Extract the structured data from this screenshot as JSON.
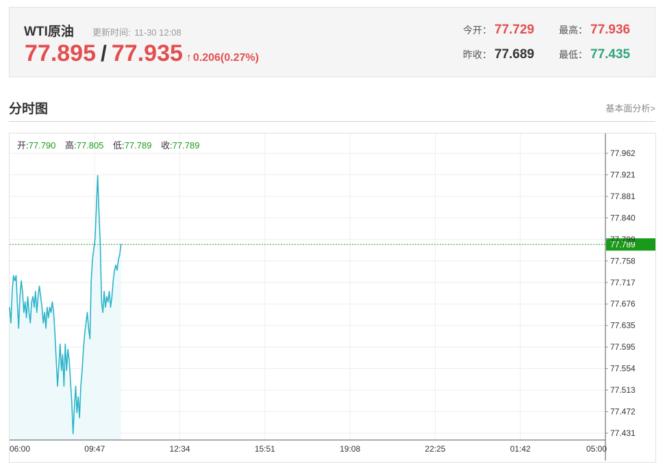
{
  "quote": {
    "title": "WTI原油",
    "update_label": "更新时间:",
    "update_time": "11-30 12:08",
    "bid": "77.895",
    "separator": "/",
    "ask": "77.935",
    "arrow": "↑",
    "change": "0.206(0.27%)",
    "open_label": "今开：",
    "open": "77.729",
    "high_label": "最高：",
    "high": "77.936",
    "prev_close_label": "昨收：",
    "prev_close": "77.689",
    "low_label": "最低：",
    "low": "77.435"
  },
  "section": {
    "title": "分时图",
    "link": "基本面分析>"
  },
  "colors": {
    "up": "#e24f50",
    "down": "#2fa57a",
    "line": "#2ab3c9",
    "fill": "#eef9fb",
    "current": "#1a9a1a"
  },
  "chart_data": {
    "type": "area",
    "ohlc": {
      "open_label": "开:",
      "open": "77.790",
      "high_label": "高:",
      "high": "77.805",
      "low_label": "低:",
      "low": "77.789",
      "close_label": "收:",
      "close": "77.789"
    },
    "x_ticks": [
      "06:00",
      "09:47",
      "12:34",
      "15:51",
      "19:08",
      "22:25",
      "01:42",
      "05:00"
    ],
    "y_ticks": [
      "77.962",
      "77.921",
      "77.881",
      "77.840",
      "77.799",
      "77.758",
      "77.717",
      "77.676",
      "77.635",
      "77.595",
      "77.554",
      "77.513",
      "77.472",
      "77.431"
    ],
    "ylim": [
      77.431,
      77.962
    ],
    "current_price": "77.789",
    "x_start": "06:00",
    "series": [
      {
        "values": [
          [
            0,
            77.67
          ],
          [
            3,
            77.64
          ],
          [
            6,
            77.7
          ],
          [
            9,
            77.73
          ],
          [
            12,
            77.72
          ],
          [
            15,
            77.73
          ],
          [
            18,
            77.68
          ],
          [
            21,
            77.63
          ],
          [
            24,
            77.69
          ],
          [
            27,
            77.72
          ],
          [
            30,
            77.7
          ],
          [
            33,
            77.66
          ],
          [
            36,
            77.68
          ],
          [
            39,
            77.65
          ],
          [
            42,
            77.69
          ],
          [
            45,
            77.66
          ],
          [
            48,
            77.64
          ],
          [
            51,
            77.68
          ],
          [
            54,
            77.69
          ],
          [
            57,
            77.67
          ],
          [
            60,
            77.7
          ],
          [
            63,
            77.66
          ],
          [
            66,
            77.69
          ],
          [
            69,
            77.71
          ],
          [
            72,
            77.69
          ],
          [
            75,
            77.67
          ],
          [
            78,
            77.64
          ],
          [
            81,
            77.66
          ],
          [
            84,
            77.63
          ],
          [
            87,
            77.67
          ],
          [
            90,
            77.65
          ],
          [
            93,
            77.67
          ],
          [
            96,
            77.66
          ],
          [
            99,
            77.68
          ],
          [
            102,
            77.66
          ],
          [
            105,
            77.62
          ],
          [
            108,
            77.57
          ],
          [
            111,
            77.52
          ],
          [
            114,
            77.56
          ],
          [
            117,
            77.6
          ],
          [
            120,
            77.55
          ],
          [
            123,
            77.58
          ],
          [
            126,
            77.52
          ],
          [
            129,
            77.6
          ],
          [
            132,
            77.55
          ],
          [
            135,
            77.59
          ],
          [
            138,
            77.57
          ],
          [
            141,
            77.53
          ],
          [
            144,
            77.49
          ],
          [
            147,
            77.43
          ],
          [
            150,
            77.48
          ],
          [
            153,
            77.52
          ],
          [
            156,
            77.47
          ],
          [
            159,
            77.5
          ],
          [
            162,
            77.46
          ],
          [
            165,
            77.52
          ],
          [
            168,
            77.55
          ],
          [
            171,
            77.59
          ],
          [
            174,
            77.62
          ],
          [
            177,
            77.64
          ],
          [
            180,
            77.66
          ],
          [
            183,
            77.63
          ],
          [
            186,
            77.61
          ],
          [
            189,
            77.72
          ],
          [
            192,
            77.76
          ],
          [
            195,
            77.78
          ],
          [
            198,
            77.8
          ],
          [
            201,
            77.86
          ],
          [
            204,
            77.92
          ],
          [
            207,
            77.85
          ],
          [
            210,
            77.79
          ],
          [
            213,
            77.68
          ],
          [
            216,
            77.66
          ],
          [
            219,
            77.7
          ],
          [
            222,
            77.67
          ],
          [
            225,
            77.69
          ],
          [
            228,
            77.68
          ],
          [
            231,
            77.7
          ],
          [
            234,
            77.67
          ],
          [
            237,
            77.69
          ],
          [
            240,
            77.72
          ],
          [
            243,
            77.74
          ],
          [
            246,
            77.75
          ],
          [
            249,
            77.74
          ],
          [
            252,
            77.76
          ],
          [
            255,
            77.77
          ],
          [
            258,
            77.79
          ]
        ]
      }
    ]
  }
}
